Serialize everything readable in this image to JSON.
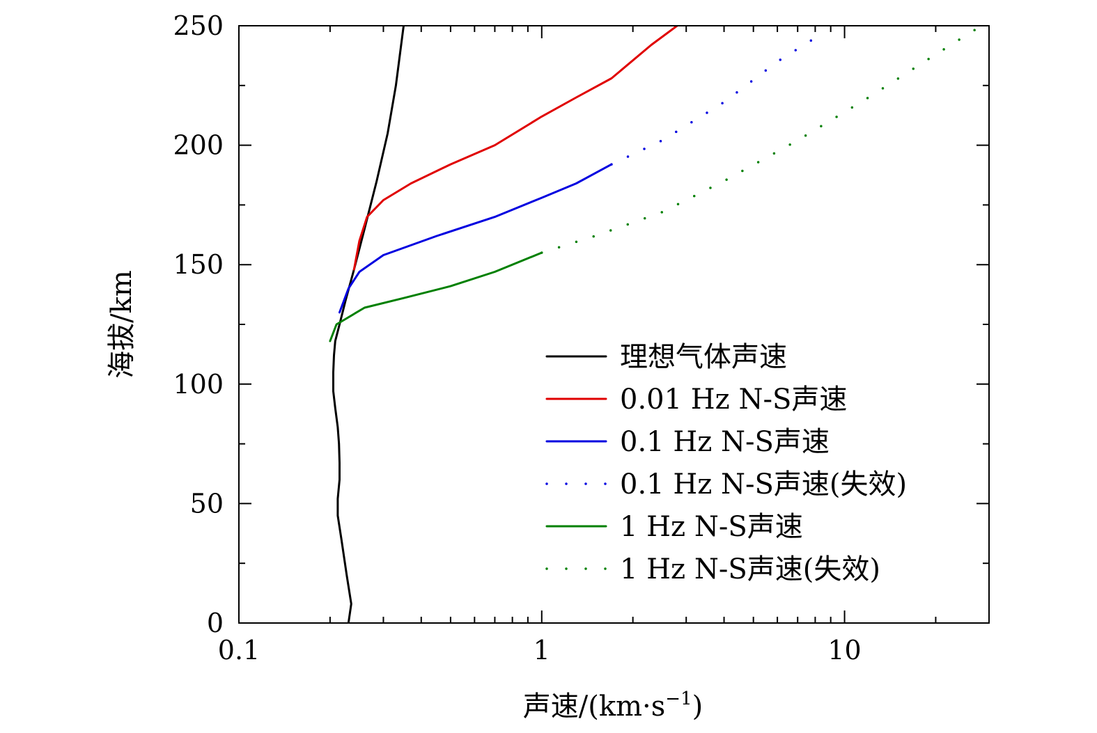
{
  "chart_data": {
    "type": "line",
    "title": "",
    "xlabel": "声速/(km·s",
    "xlabel_sup": "−1",
    "xlabel_close": ")",
    "ylabel": "海拔/km",
    "xscale": "log",
    "xlim": [
      0.1,
      30
    ],
    "ylim": [
      0,
      250
    ],
    "x_ticks": [
      0.1,
      1,
      10
    ],
    "x_tick_labels": [
      "0.1",
      "1",
      "10"
    ],
    "y_ticks": [
      0,
      50,
      100,
      150,
      200,
      250
    ],
    "y_tick_labels": [
      "0",
      "50",
      "100",
      "150",
      "200",
      "250"
    ],
    "legend_position": "lower-right",
    "series": [
      {
        "name": "理想气体声速",
        "color": "#000000",
        "style": "solid",
        "points": [
          [
            0.23,
            0
          ],
          [
            0.235,
            8
          ],
          [
            0.227,
            20
          ],
          [
            0.218,
            35
          ],
          [
            0.212,
            45
          ],
          [
            0.212,
            52
          ],
          [
            0.215,
            60
          ],
          [
            0.215,
            67
          ],
          [
            0.214,
            75
          ],
          [
            0.212,
            82
          ],
          [
            0.208,
            90
          ],
          [
            0.205,
            97
          ],
          [
            0.205,
            105
          ],
          [
            0.206,
            112
          ],
          [
            0.208,
            118
          ],
          [
            0.215,
            125
          ],
          [
            0.225,
            135
          ],
          [
            0.24,
            148
          ],
          [
            0.26,
            165
          ],
          [
            0.285,
            185
          ],
          [
            0.31,
            205
          ],
          [
            0.33,
            225
          ],
          [
            0.35,
            250
          ]
        ]
      },
      {
        "name": "0.01 Hz N-S声速",
        "color": "#e00000",
        "style": "solid",
        "points": [
          [
            0.24,
            148
          ],
          [
            0.25,
            160
          ],
          [
            0.265,
            170
          ],
          [
            0.3,
            177
          ],
          [
            0.37,
            184
          ],
          [
            0.5,
            192
          ],
          [
            0.7,
            200
          ],
          [
            1.0,
            212
          ],
          [
            1.3,
            220
          ],
          [
            1.7,
            228
          ],
          [
            2.3,
            242
          ],
          [
            2.8,
            250
          ]
        ]
      },
      {
        "name": "0.1 Hz N-S声速",
        "color": "#0000e0",
        "style": "solid",
        "points": [
          [
            0.215,
            130
          ],
          [
            0.23,
            140
          ],
          [
            0.25,
            147
          ],
          [
            0.3,
            154
          ],
          [
            0.45,
            162
          ],
          [
            0.7,
            170
          ],
          [
            1.0,
            178
          ],
          [
            1.3,
            184
          ],
          [
            1.7,
            192
          ]
        ]
      },
      {
        "name": "0.1 Hz N-S声速(失效)",
        "color": "#0000e0",
        "style": "dotted",
        "points": [
          [
            1.7,
            192
          ],
          [
            2.5,
            202
          ],
          [
            4.0,
            218
          ],
          [
            6.0,
            235
          ],
          [
            8.5,
            247
          ]
        ]
      },
      {
        "name": "1 Hz N-S声速",
        "color": "#008000",
        "style": "solid",
        "points": [
          [
            0.2,
            118
          ],
          [
            0.21,
            125
          ],
          [
            0.26,
            132
          ],
          [
            0.35,
            136
          ],
          [
            0.5,
            141
          ],
          [
            0.7,
            147
          ],
          [
            1.0,
            155
          ]
        ]
      },
      {
        "name": "1 Hz N-S声速(失效)",
        "color": "#008000",
        "style": "dotted",
        "points": [
          [
            1.0,
            155
          ],
          [
            1.5,
            162
          ],
          [
            2.5,
            172
          ],
          [
            4.0,
            185
          ],
          [
            7.0,
            202
          ],
          [
            12.0,
            220
          ],
          [
            20.0,
            238
          ],
          [
            30.0,
            252
          ]
        ]
      }
    ]
  }
}
